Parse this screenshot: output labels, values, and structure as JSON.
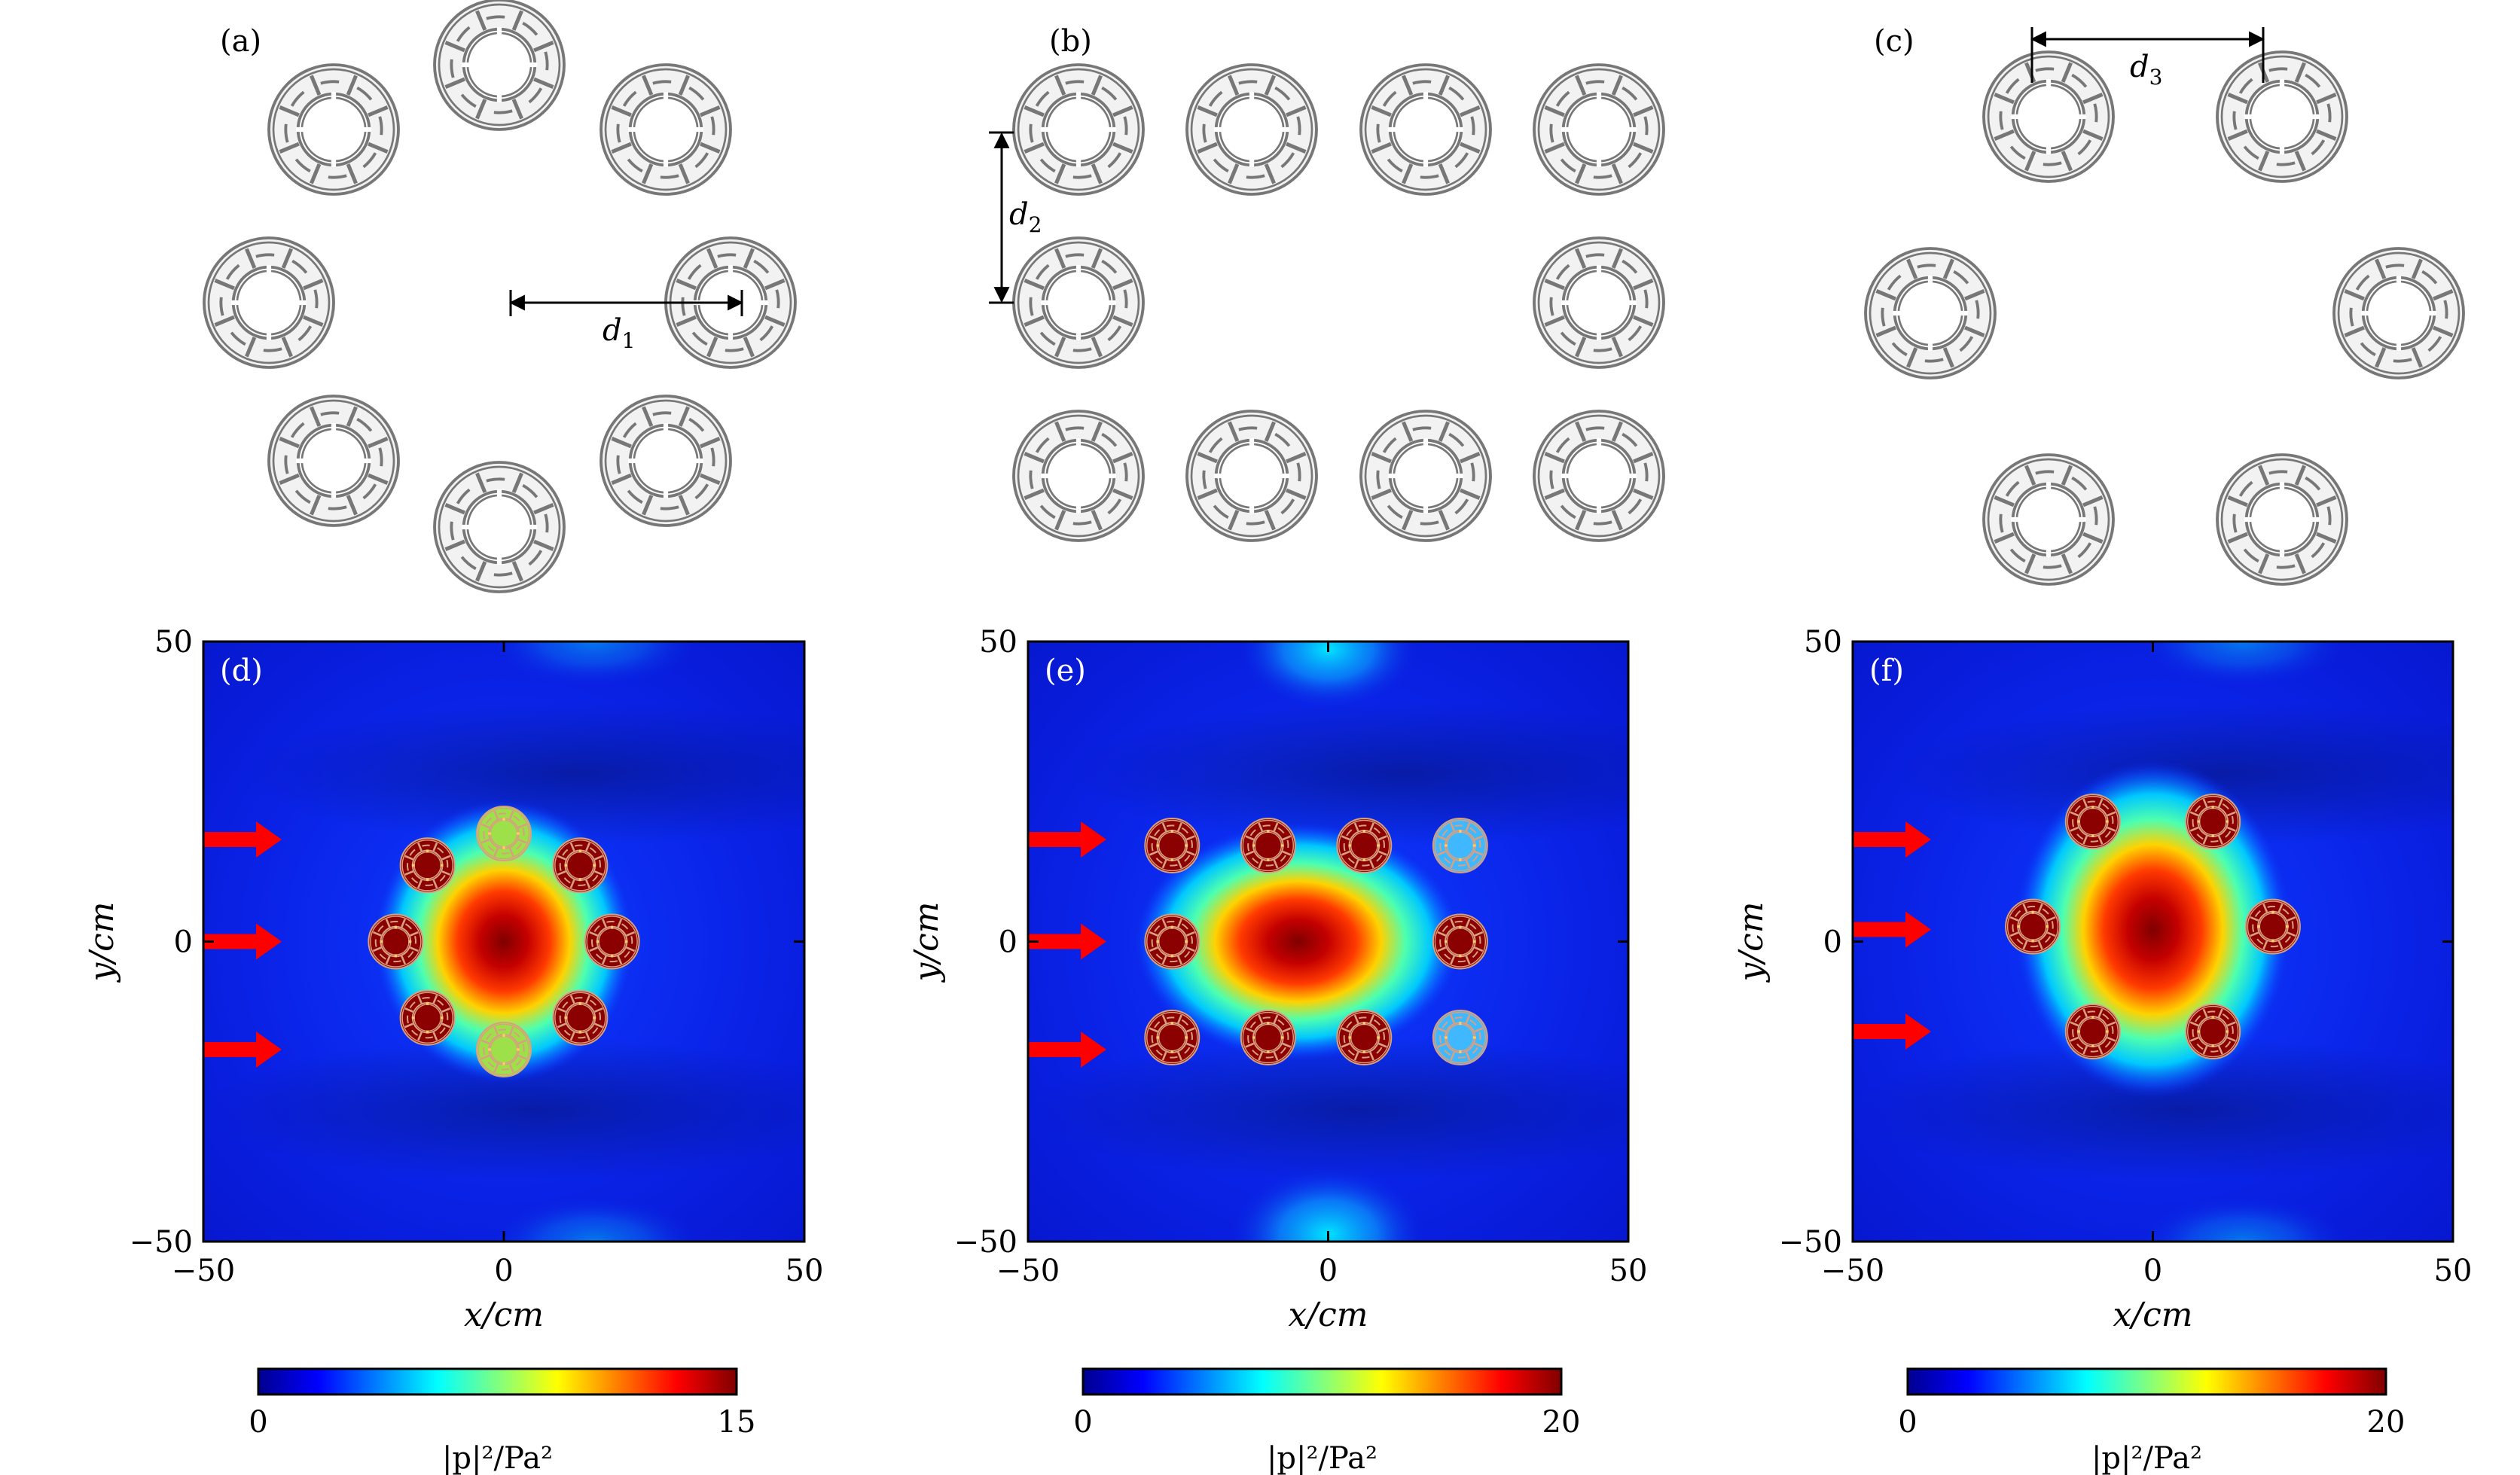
{
  "chart_data": [
    {
      "type": "diagram",
      "panel": "(a)",
      "arrangement": "octagon ring of 8 resonators",
      "dimension_label": "d1"
    },
    {
      "type": "diagram",
      "panel": "(b)",
      "arrangement": "rectangular frame of 10 resonators (4 top, 2 middle, 4 bottom)",
      "dimension_label": "d2"
    },
    {
      "type": "diagram",
      "panel": "(c)",
      "arrangement": "hexagon ring of 6 resonators",
      "dimension_label": "d3"
    },
    {
      "type": "heatmap",
      "panel": "(d)",
      "xlabel": "x/cm",
      "ylabel": "y/cm",
      "xlim": [
        -50,
        50
      ],
      "ylim": [
        -50,
        50
      ],
      "xticks": [
        -50,
        0,
        50
      ],
      "yticks": [
        -50,
        0,
        50
      ],
      "colorbar": {
        "min": 0,
        "max": 15,
        "label": "|p|²/Pa²",
        "ticks": [
          0,
          15
        ]
      },
      "incident_arrows_y": [
        17,
        0,
        -18
      ],
      "peak_center": [
        0,
        0
      ],
      "resonator_centers": [
        [
          0,
          18
        ],
        [
          12.7,
          12.7
        ],
        [
          18,
          0
        ],
        [
          12.7,
          -12.7
        ],
        [
          0,
          -18
        ],
        [
          -12.7,
          -12.7
        ],
        [
          -18,
          0
        ],
        [
          -12.7,
          12.7
        ]
      ]
    },
    {
      "type": "heatmap",
      "panel": "(e)",
      "xlabel": "x/cm",
      "ylabel": "y/cm",
      "xlim": [
        -50,
        50
      ],
      "ylim": [
        -50,
        50
      ],
      "xticks": [
        -50,
        0,
        50
      ],
      "yticks": [
        -50,
        0,
        50
      ],
      "colorbar": {
        "min": 0,
        "max": 20,
        "label": "|p|²/Pa²",
        "ticks": [
          0,
          20
        ]
      },
      "incident_arrows_y": [
        17,
        0,
        -18
      ],
      "peak_center": [
        -5,
        0
      ],
      "resonator_centers": [
        [
          -26,
          16
        ],
        [
          -10,
          16
        ],
        [
          6,
          16
        ],
        [
          22,
          16
        ],
        [
          -26,
          0
        ],
        [
          22,
          0
        ],
        [
          -26,
          -16
        ],
        [
          -10,
          -16
        ],
        [
          6,
          -16
        ],
        [
          22,
          -16
        ]
      ]
    },
    {
      "type": "heatmap",
      "panel": "(f)",
      "xlabel": "x/cm",
      "ylabel": "y/cm",
      "xlim": [
        -50,
        50
      ],
      "ylim": [
        -50,
        50
      ],
      "xticks": [
        -50,
        0,
        50
      ],
      "yticks": [
        -50,
        0,
        50
      ],
      "colorbar": {
        "min": 0,
        "max": 20,
        "label": "|p|²/Pa²",
        "ticks": [
          0,
          20
        ]
      },
      "incident_arrows_y": [
        17,
        2,
        -15
      ],
      "peak_center": [
        0,
        2
      ],
      "resonator_centers": [
        [
          -10,
          20
        ],
        [
          10,
          20
        ],
        [
          20,
          2.5
        ],
        [
          10,
          -15
        ],
        [
          -10,
          -15
        ],
        [
          -20,
          2.5
        ]
      ]
    }
  ],
  "colors": {
    "jet_dark_blue": "#00008f",
    "jet_blue": "#0000ff",
    "jet_cyan": "#00ffff",
    "jet_yellow": "#ffff00",
    "jet_red": "#ff0000",
    "jet_dark_red": "#800000",
    "arrow": "#ff0000",
    "resonator_fill": "#8b0000",
    "outline": "#888888"
  }
}
